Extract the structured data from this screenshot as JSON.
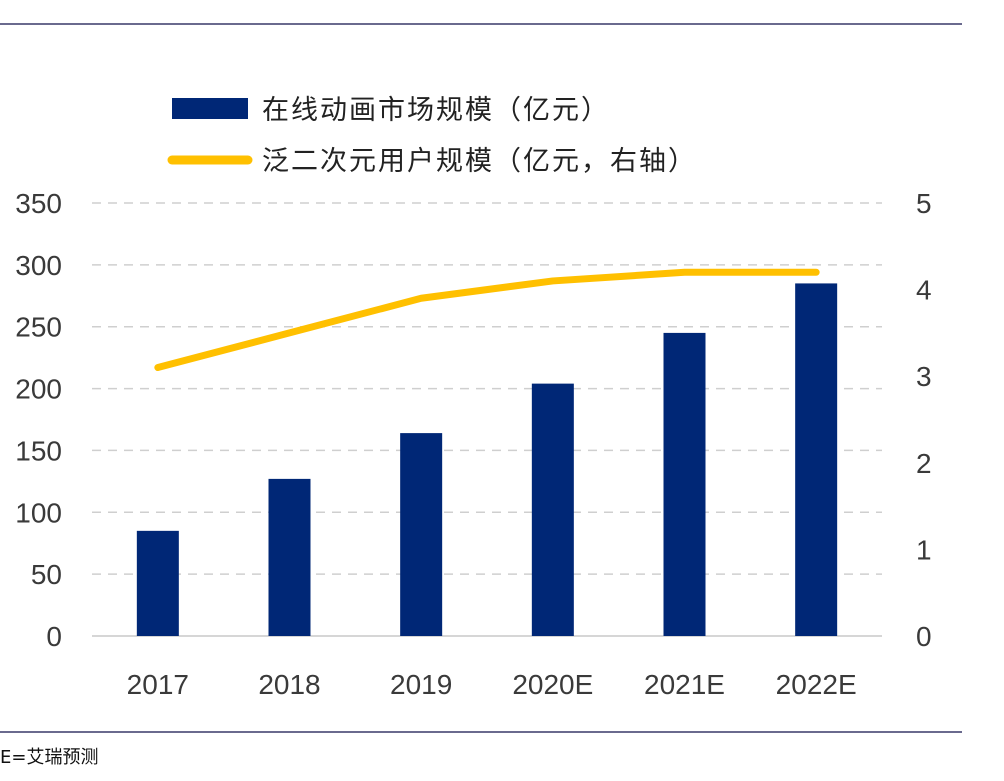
{
  "chart_data": {
    "type": "bar+line",
    "categories": [
      "2017",
      "2018",
      "2019",
      "2020E",
      "2021E",
      "2022E"
    ],
    "series": [
      {
        "name": "在线动画市场规模（亿元）",
        "type": "bar",
        "axis": "left",
        "color": "#002776",
        "values": [
          85,
          127,
          164,
          204,
          245,
          285
        ]
      },
      {
        "name": "泛二次元用户规模（亿元，右轴）",
        "type": "line",
        "axis": "right",
        "color": "#FFC000",
        "values": [
          3.1,
          3.5,
          3.9,
          4.1,
          4.2,
          4.2
        ]
      }
    ],
    "y_left": {
      "min": 0,
      "max": 350,
      "ticks": [
        0,
        50,
        100,
        150,
        200,
        250,
        300,
        350
      ]
    },
    "y_right": {
      "min": 0,
      "max": 5,
      "ticks": [
        0,
        1,
        2,
        3,
        4,
        5
      ]
    },
    "grid": true,
    "legend_position": "top"
  },
  "footnote": "E=艾瑞预测"
}
